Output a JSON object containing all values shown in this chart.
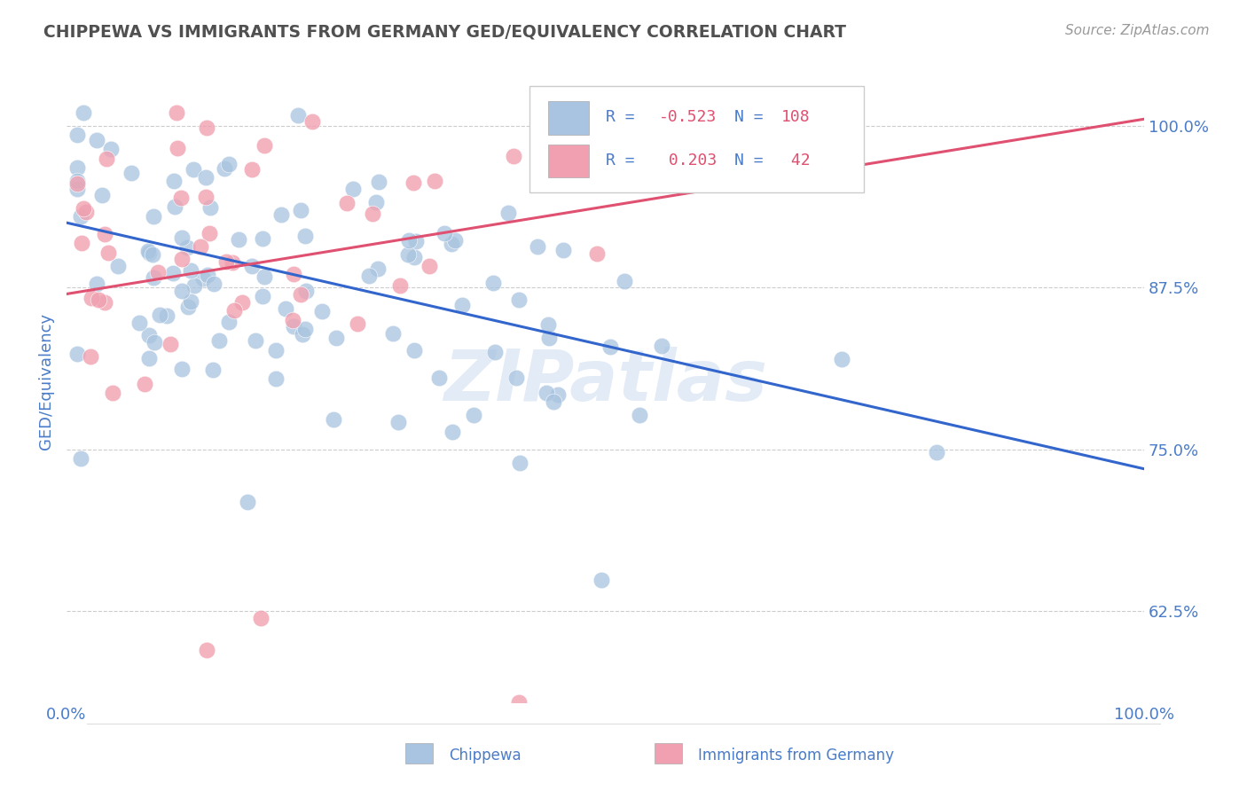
{
  "title": "CHIPPEWA VS IMMIGRANTS FROM GERMANY GED/EQUIVALENCY CORRELATION CHART",
  "source_text": "Source: ZipAtlas.com",
  "ylabel": "GED/Equivalency",
  "xlim": [
    0.0,
    1.0
  ],
  "ylim": [
    0.555,
    1.05
  ],
  "yticks": [
    0.625,
    0.75,
    0.875,
    1.0
  ],
  "ytick_labels": [
    "62.5%",
    "75.0%",
    "87.5%",
    "100.0%"
  ],
  "xticks": [
    0.0,
    0.25,
    0.5,
    0.75,
    1.0
  ],
  "xtick_labels": [
    "0.0%",
    "",
    "",
    "",
    "100.0%"
  ],
  "blue_color": "#a8c4e0",
  "pink_color": "#f0a0b0",
  "line_blue": "#3366cc",
  "line_pink": "#e05070",
  "axis_color": "#4a7cc9",
  "grid_color": "#cccccc",
  "blue_line_start": 0.925,
  "blue_line_end": 0.735,
  "pink_line_start": 0.87,
  "pink_line_end": 1.005,
  "watermark_color": "#d0dff0",
  "watermark_alpha": 0.6
}
